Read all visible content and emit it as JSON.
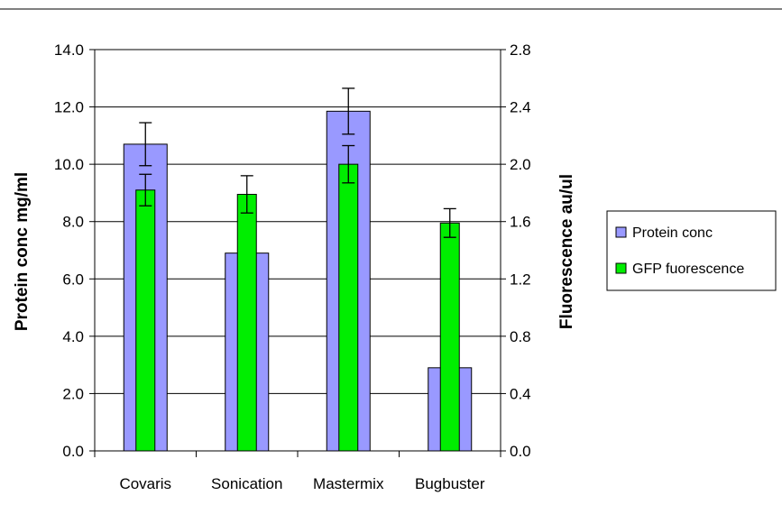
{
  "chart_data": {
    "type": "bar",
    "categories": [
      "Covaris",
      "Sonication",
      "Mastermix",
      "Bugbuster"
    ],
    "title": "",
    "xlabel": "",
    "ylabel": "Protein conc mg/ml",
    "y2label": "Fluorescence au/ul",
    "ylim": [
      0,
      14
    ],
    "y2lim": [
      0,
      2.8
    ],
    "yticks": [
      "0.0",
      "2.0",
      "4.0",
      "6.0",
      "8.0",
      "10.0",
      "12.0",
      "14.0"
    ],
    "y2ticks": [
      "0.0",
      "0.4",
      "0.8",
      "1.2",
      "1.6",
      "2.0",
      "2.4",
      "2.8"
    ],
    "grid": true,
    "legend_position": "right",
    "series": [
      {
        "name": "Protein conc",
        "axis": "left",
        "color": "#9999ff",
        "values": [
          10.7,
          6.9,
          11.85,
          2.9
        ],
        "errors": [
          0.75,
          null,
          0.8,
          null
        ]
      },
      {
        "name": "GFP fuorescence",
        "axis": "right",
        "color": "#00ee00",
        "values": [
          1.82,
          1.79,
          2.0,
          1.59
        ],
        "errors": [
          0.11,
          0.13,
          0.13,
          0.1
        ]
      }
    ]
  }
}
